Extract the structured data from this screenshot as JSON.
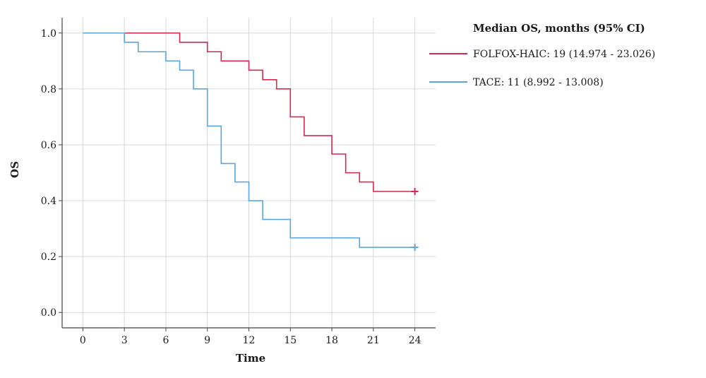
{
  "chart_data": {
    "type": "line",
    "subtype": "kaplan-meier step",
    "xlabel": "Time",
    "ylabel": "OS",
    "xlim": [
      -1.5,
      25.5
    ],
    "ylim": [
      -0.055,
      1.055
    ],
    "x_ticks": [
      0,
      3,
      6,
      9,
      12,
      15,
      18,
      21,
      24
    ],
    "y_ticks": [
      0.0,
      0.2,
      0.4,
      0.6,
      0.8,
      1.0
    ],
    "y_tick_labels": [
      "0.0",
      "0.2",
      "0.4",
      "0.6",
      "0.8",
      "1.0"
    ],
    "grid": true,
    "legend_position": "top-right, outside plot",
    "legend_title": "Median OS, months (95% CI)",
    "series": [
      {
        "name": "FOLFOX-HAIC: 19 (14.974 - 23.026)",
        "color": "#d9264f",
        "censor_marker": "+",
        "steps": [
          [
            0,
            1.0
          ],
          [
            7,
            0.967
          ],
          [
            9,
            0.933
          ],
          [
            10,
            0.9
          ],
          [
            12,
            0.867
          ],
          [
            13,
            0.833
          ],
          [
            14,
            0.8
          ],
          [
            15,
            0.7
          ],
          [
            16,
            0.633
          ],
          [
            18,
            0.567
          ],
          [
            19,
            0.5
          ],
          [
            20,
            0.467
          ],
          [
            21,
            0.433
          ]
        ],
        "end_x": 24,
        "censored": [
          [
            24,
            0.433
          ]
        ]
      },
      {
        "name": "TACE: 11 (8.992 - 13.008)",
        "color": "#5aa5e0",
        "censor_marker": "+",
        "steps": [
          [
            0,
            1.0
          ],
          [
            3,
            0.967
          ],
          [
            4,
            0.933
          ],
          [
            6,
            0.9
          ],
          [
            7,
            0.867
          ],
          [
            8,
            0.8
          ],
          [
            9,
            0.667
          ],
          [
            10,
            0.533
          ],
          [
            11,
            0.467
          ],
          [
            12,
            0.4
          ],
          [
            13,
            0.333
          ],
          [
            15,
            0.267
          ],
          [
            20,
            0.233
          ]
        ],
        "end_x": 24,
        "censored": [
          [
            24,
            0.233
          ]
        ]
      }
    ]
  }
}
